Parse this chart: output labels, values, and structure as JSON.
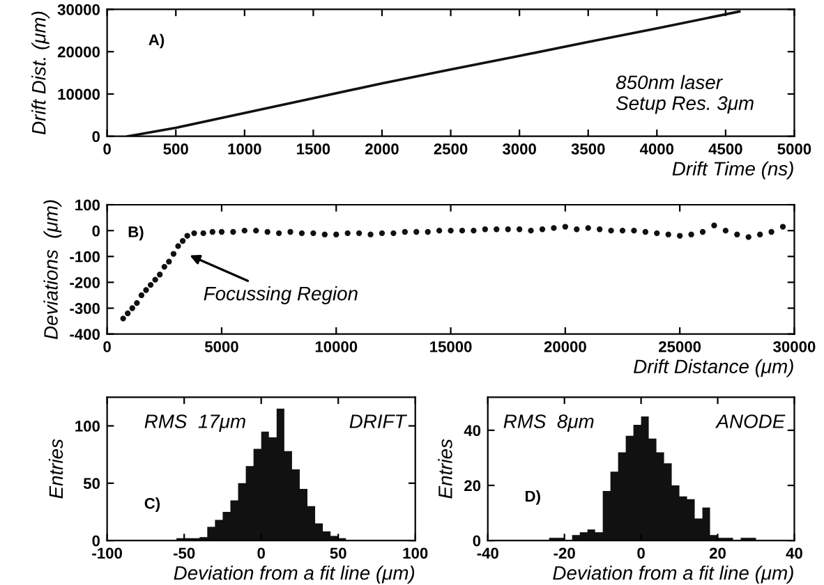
{
  "chart_data": [
    {
      "type": "line",
      "xlabel": "Drift Time (ns)",
      "ylabel": "Drift Dist. (μm)",
      "annotations": [
        "A)",
        "850nm laser\nSetup Res. 3μm"
      ],
      "x": [
        150,
        500,
        1000,
        1500,
        2000,
        2500,
        3000,
        3500,
        4000,
        4600
      ],
      "series": [
        {
          "color": "#111111",
          "values": [
            0,
            2000,
            5500,
            9000,
            12500,
            15800,
            19000,
            22300,
            25500,
            29500
          ]
        }
      ],
      "xlim": [
        0,
        5000
      ],
      "xticks": [
        0,
        500,
        1000,
        1500,
        2000,
        2500,
        3000,
        3500,
        4000,
        4500,
        5000
      ],
      "ylim": [
        0,
        30000
      ],
      "yticks": [
        0,
        10000,
        20000,
        30000
      ],
      "marker": "none",
      "line_style": "solid",
      "grid": false,
      "legend": false
    },
    {
      "type": "scatter",
      "xlabel": "Drift Distance (μm)",
      "ylabel": "Deviations  (μm)",
      "annotations": [
        "B)",
        "Focussing Region"
      ],
      "x": [
        700,
        900,
        1100,
        1300,
        1500,
        1700,
        1900,
        2100,
        2300,
        2500,
        2700,
        2900,
        3100,
        3300,
        3500,
        3800,
        4200,
        4600,
        5000,
        5500,
        6000,
        6500,
        7000,
        7500,
        8000,
        8500,
        9000,
        9500,
        10000,
        10500,
        11000,
        11500,
        12000,
        12500,
        13000,
        13500,
        14000,
        14500,
        15000,
        15500,
        16000,
        16500,
        17000,
        17500,
        18000,
        18500,
        19000,
        19500,
        20000,
        20500,
        21000,
        21500,
        22000,
        22500,
        23000,
        23500,
        24000,
        24500,
        25000,
        25500,
        26000,
        26500,
        27000,
        27500,
        28000,
        28500,
        29000,
        29500
      ],
      "series": [
        {
          "color": "#111111",
          "values": [
            -340,
            -320,
            -300,
            -280,
            -250,
            -230,
            -210,
            -190,
            -170,
            -140,
            -120,
            -90,
            -60,
            -40,
            -20,
            -10,
            -10,
            -5,
            -5,
            -5,
            0,
            0,
            -5,
            -10,
            -5,
            -10,
            -10,
            -15,
            -15,
            -10,
            -10,
            -15,
            -10,
            -10,
            -5,
            -5,
            -5,
            0,
            0,
            0,
            0,
            5,
            5,
            5,
            5,
            0,
            5,
            10,
            15,
            5,
            10,
            5,
            0,
            0,
            0,
            -5,
            -10,
            -15,
            -20,
            -15,
            -5,
            20,
            0,
            -15,
            -25,
            -15,
            -5,
            15
          ]
        }
      ],
      "xlim": [
        0,
        30000
      ],
      "xticks": [
        0,
        5000,
        10000,
        15000,
        20000,
        25000,
        30000
      ],
      "ylim": [
        -400,
        100
      ],
      "yticks": [
        -400,
        -300,
        -200,
        -100,
        0,
        100
      ],
      "marker": "circle",
      "grid": false,
      "legend": false
    },
    {
      "type": "histogram",
      "xlabel": "Deviation from a fit line (μm)",
      "ylabel": "Entries",
      "annotations": [
        "C)",
        "RMS  17μm",
        "DRIFT"
      ],
      "bins": [
        -55,
        -50,
        -45,
        -40,
        -35,
        -30,
        -25,
        -20,
        -15,
        -10,
        -5,
        0,
        5,
        10,
        15,
        20,
        25,
        30,
        35,
        40,
        45,
        50,
        55
      ],
      "values": [
        2,
        2,
        2,
        3,
        12,
        18,
        25,
        35,
        50,
        65,
        80,
        95,
        90,
        115,
        78,
        62,
        45,
        30,
        15,
        8,
        4,
        2
      ],
      "color": "#111111",
      "xlim": [
        -100,
        100
      ],
      "xticks": [
        -100,
        -50,
        0,
        50,
        100
      ],
      "ylim": [
        0,
        125
      ],
      "yticks": [
        0,
        50,
        100
      ],
      "grid": false,
      "legend": false
    },
    {
      "type": "histogram",
      "xlabel": "Deviation from a fit line (μm)",
      "ylabel": "Entries",
      "annotations": [
        "D)",
        "RMS  8μm",
        "ANODE"
      ],
      "bins": [
        -24,
        -22,
        -20,
        -18,
        -16,
        -14,
        -12,
        -10,
        -8,
        -6,
        -4,
        -2,
        0,
        2,
        4,
        6,
        8,
        10,
        12,
        14,
        16,
        18,
        20,
        22,
        24,
        26,
        28,
        30
      ],
      "values": [
        1,
        1,
        0,
        2,
        3,
        4,
        3,
        18,
        25,
        32,
        38,
        42,
        45,
        37,
        32,
        28,
        20,
        16,
        15,
        8,
        12,
        2,
        1,
        1,
        0,
        1,
        1
      ],
      "color": "#111111",
      "xlim": [
        -40,
        40
      ],
      "xticks": [
        -40,
        -20,
        0,
        20,
        40
      ],
      "ylim": [
        0,
        52
      ],
      "yticks": [
        0,
        20,
        40
      ],
      "grid": false,
      "legend": false
    }
  ]
}
